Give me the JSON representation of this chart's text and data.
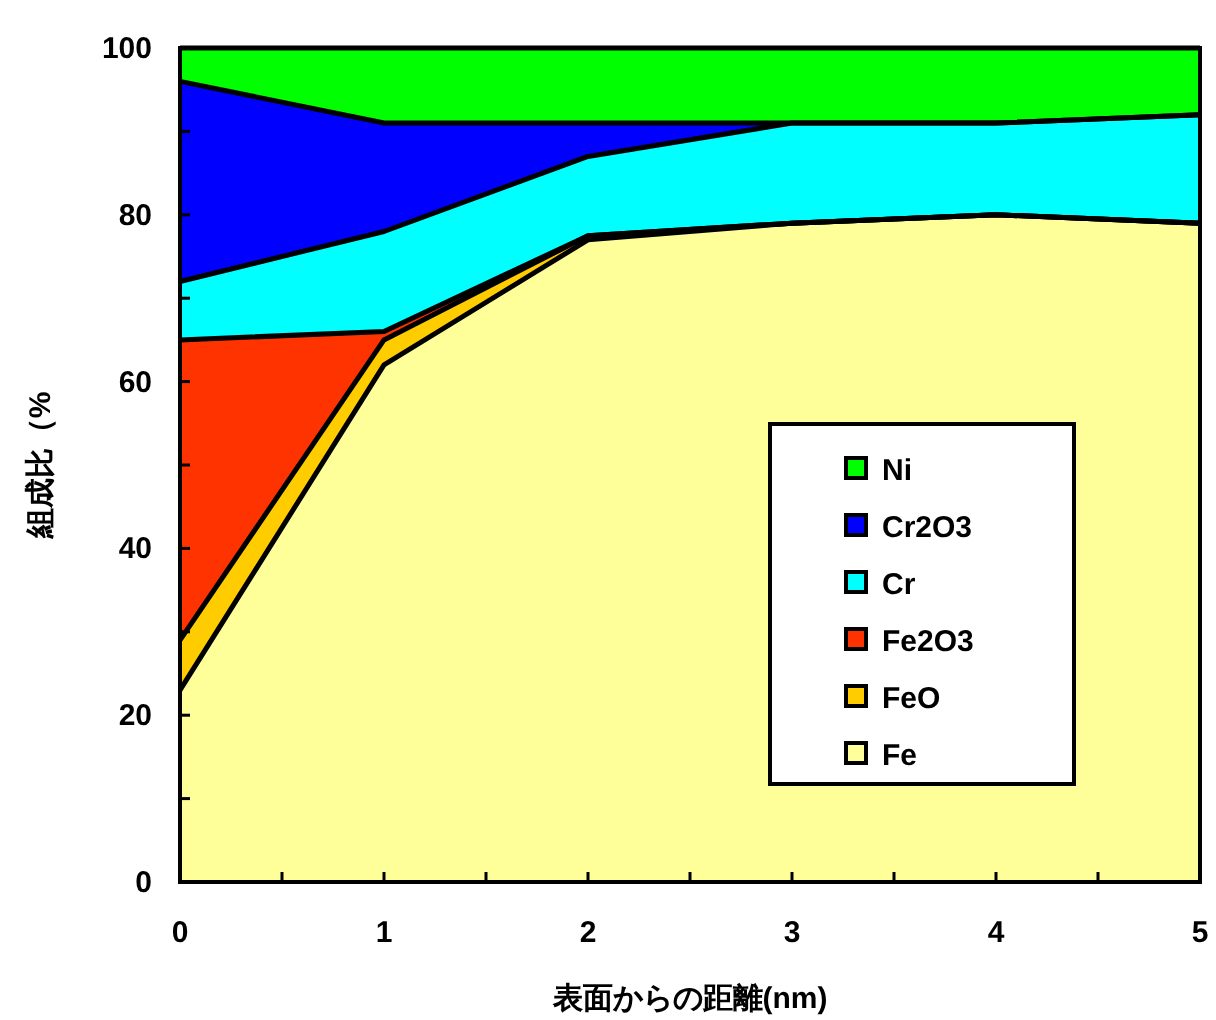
{
  "chart_data": {
    "type": "area",
    "stacked": true,
    "xlabel": "表面からの距離(nm)",
    "ylabel": "組成比（%",
    "x": [
      0,
      1,
      2,
      3,
      4,
      5
    ],
    "xlim": [
      0,
      5
    ],
    "xticks": [
      0,
      {
        "value": 0.5,
        "label": null
      },
      1,
      {
        "value": 1.5,
        "label": null
      },
      2,
      {
        "value": 2.5,
        "label": null
      },
      3,
      {
        "value": 3.5,
        "label": null
      },
      4,
      {
        "value": 4.5,
        "label": null
      },
      5
    ],
    "ylim": [
      0,
      100
    ],
    "yticks": [
      0,
      {
        "value": 10,
        "label": null
      },
      20,
      {
        "value": 30,
        "label": null
      },
      40,
      {
        "value": 50,
        "label": null
      },
      60,
      {
        "value": 70,
        "label": null
      },
      80,
      {
        "value": 90,
        "label": null
      },
      100
    ],
    "legend": "right",
    "grid": false,
    "series": [
      {
        "name": "Fe",
        "color": "#ffff99",
        "values": [
          23,
          62,
          77,
          79,
          80,
          79
        ]
      },
      {
        "name": "FeO",
        "color": "#ffcc00",
        "values": [
          6,
          3,
          0.5,
          0,
          0,
          0
        ]
      },
      {
        "name": "Fe2O3",
        "color": "#ff3300",
        "values": [
          36,
          1,
          0,
          0,
          0,
          0
        ]
      },
      {
        "name": "Cr",
        "color": "#00ffff",
        "values": [
          7,
          12,
          9.5,
          12,
          11,
          13
        ]
      },
      {
        "name": "Cr2O3",
        "color": "#0000ff",
        "values": [
          24,
          13,
          4,
          0,
          0,
          0
        ]
      },
      {
        "name": "Ni",
        "color": "#00ff00",
        "values": [
          4,
          9,
          9,
          9,
          9,
          8
        ]
      }
    ]
  }
}
